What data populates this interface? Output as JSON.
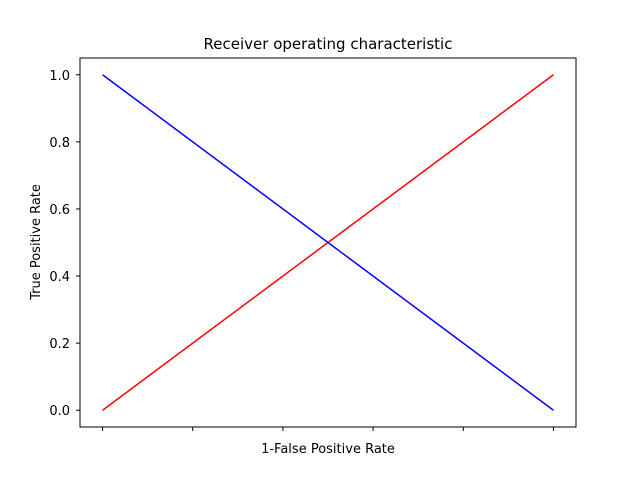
{
  "chart_data": {
    "type": "line",
    "title": "Receiver operating characteristic",
    "xlabel": "1-False Positive Rate",
    "ylabel": "True Positive Rate",
    "xlim": [
      -0.05,
      1.05
    ],
    "ylim": [
      -0.05,
      1.05
    ],
    "x_ticks": [
      0,
      0.2,
      0.4,
      0.6,
      0.8,
      1.0
    ],
    "x_tick_labels_shown": false,
    "y_ticks": [
      0.0,
      0.2,
      0.4,
      0.6,
      0.8,
      1.0
    ],
    "y_tick_labels": [
      "0.0",
      "0.2",
      "0.4",
      "0.6",
      "0.8",
      "1.0"
    ],
    "grid": false,
    "legend": false,
    "series": [
      {
        "color": "#ff0000",
        "x": [
          0,
          1
        ],
        "y": [
          0,
          1
        ]
      },
      {
        "color": "#0000ff",
        "x": [
          0,
          1
        ],
        "y": [
          1,
          0
        ]
      }
    ]
  }
}
